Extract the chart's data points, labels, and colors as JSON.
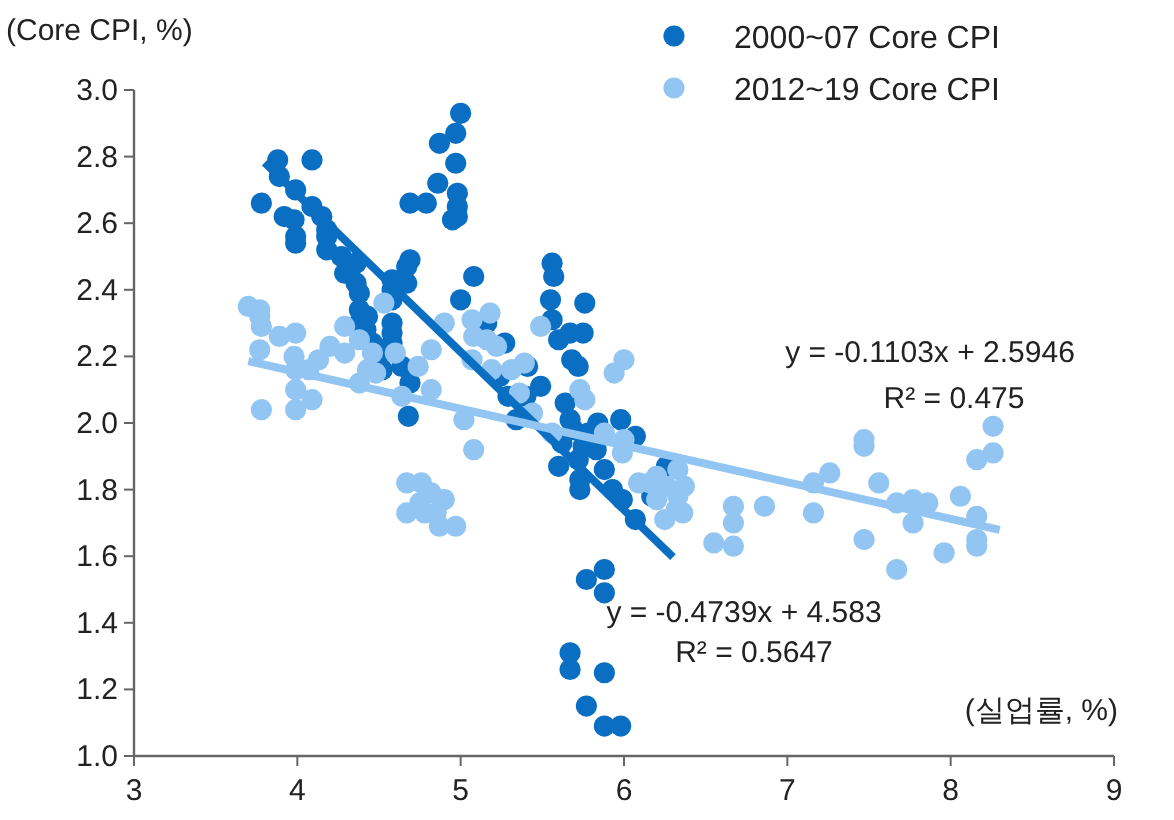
{
  "chart_data": {
    "type": "scatter",
    "xlabel": "(실업률, %)",
    "ylabel": "(Core CPI, %)",
    "legend": "top right",
    "xlim": [
      3,
      9
    ],
    "xticks": [
      3,
      4,
      5,
      6,
      7,
      8,
      9
    ],
    "ylim": [
      1,
      3
    ],
    "yticks": [
      {
        "value": 1,
        "label": "1.0"
      },
      {
        "value": 1.2,
        "label": "1.2"
      },
      {
        "value": 1.4,
        "label": "1.4"
      },
      {
        "value": 1.6,
        "label": "1.6"
      },
      {
        "value": 1.8,
        "label": "1.8"
      },
      {
        "value": 2,
        "label": "2.0"
      },
      {
        "value": 2.2,
        "label": "2.2"
      },
      {
        "value": 2.4,
        "label": "2.4"
      },
      {
        "value": 2.6,
        "label": "2.6"
      },
      {
        "value": 2.8,
        "label": "2.8"
      },
      {
        "value": 3,
        "label": "3.0"
      }
    ],
    "annotations": [
      "y = -0.1103x + 2.5946",
      "R² = 0.475",
      "y = -0.4739x + 4.583",
      "R² = 0.5647"
    ],
    "series": [
      {
        "name": "2000~07 Core CPI",
        "marker": "circle",
        "color": "#0a6fc2",
        "x": [
          3.78,
          3.88,
          3.89,
          4.09,
          4.09,
          3.92,
          3.99,
          3.98,
          3.99,
          3.99,
          4.15,
          4.18,
          4.18,
          4.18,
          4.27,
          4.29,
          4.36,
          4.36,
          4.38,
          4.38,
          4.43,
          4.38,
          4.42,
          4.46,
          4.49,
          4.52,
          4.58,
          4.58,
          4.58,
          4.58,
          4.58,
          4.58,
          4.67,
          4.69,
          4.67,
          4.64,
          4.69,
          4.68,
          4.79,
          4.69,
          4.86,
          4.87,
          4.97,
          4.98,
          4.98,
          4.97,
          4.95,
          5.0,
          4.98,
          5.08,
          5.0,
          5.16,
          5.27,
          5.24,
          5.29,
          5.34,
          5.4,
          5.41,
          5.49,
          5.56,
          5.56,
          5.57,
          5.55,
          5.6,
          5.67,
          5.68,
          5.72,
          5.75,
          5.76,
          5.64,
          5.67,
          5.69,
          5.62,
          5.6,
          5.72,
          5.75,
          5.78,
          5.73,
          5.73,
          5.88,
          5.93,
          5.83,
          5.84,
          5.98,
          6.07,
          6.17,
          5.99,
          6.07,
          6.26,
          5.77,
          5.88,
          5.88,
          5.67,
          5.67,
          5.88,
          5.77,
          5.88,
          5.98
        ],
        "values": [
          2.66,
          2.79,
          2.74,
          2.79,
          2.65,
          2.62,
          2.7,
          2.61,
          2.56,
          2.54,
          2.62,
          2.56,
          2.58,
          2.52,
          2.5,
          2.45,
          2.48,
          2.42,
          2.39,
          2.34,
          2.32,
          2.3,
          2.28,
          2.24,
          2.2,
          2.16,
          2.24,
          2.27,
          2.3,
          2.37,
          2.4,
          2.43,
          2.42,
          2.49,
          2.47,
          2.17,
          2.12,
          2.02,
          2.66,
          2.66,
          2.72,
          2.84,
          2.87,
          2.69,
          2.65,
          2.78,
          2.61,
          2.93,
          2.62,
          2.44,
          2.37,
          2.3,
          2.24,
          2.14,
          2.08,
          2.01,
          2.08,
          2.17,
          2.11,
          2.31,
          2.48,
          2.44,
          2.37,
          2.25,
          2.27,
          2.19,
          2.17,
          2.27,
          2.36,
          2.06,
          2.01,
          1.98,
          1.94,
          1.87,
          1.89,
          1.93,
          1.97,
          1.83,
          1.8,
          1.86,
          1.8,
          1.92,
          2.0,
          2.01,
          1.96,
          1.78,
          1.77,
          1.71,
          1.87,
          1.53,
          1.56,
          1.49,
          1.31,
          1.26,
          1.25,
          1.15,
          1.09,
          1.09
        ]
      },
      {
        "name": "2012~19 Core CPI",
        "marker": "circle",
        "color": "#92c5f2",
        "x": [
          3.7,
          3.77,
          3.77,
          3.78,
          3.77,
          3.89,
          3.99,
          3.78,
          3.99,
          3.99,
          4.09,
          3.99,
          3.98,
          4.07,
          4.13,
          4.2,
          4.29,
          4.29,
          4.38,
          4.38,
          4.43,
          4.46,
          4.64,
          4.53,
          4.6,
          4.48,
          4.74,
          4.82,
          4.82,
          4.9,
          5.08,
          5.07,
          5.07,
          5.18,
          5.16,
          5.22,
          5.19,
          5.31,
          5.39,
          5.36,
          5.44,
          5.02,
          4.82,
          4.67,
          4.76,
          4.75,
          4.78,
          4.85,
          4.67,
          4.97,
          4.87,
          4.9,
          5.08,
          5.49,
          5.73,
          5.76,
          5.94,
          6.0,
          5.56,
          5.88,
          6.0,
          5.99,
          6.09,
          6.2,
          6.16,
          6.2,
          6.25,
          6.33,
          6.32,
          6.26,
          6.33,
          6.37,
          6.36,
          6.55,
          6.67,
          6.67,
          6.67,
          6.86,
          7.16,
          7.16,
          7.26,
          7.47,
          7.47,
          7.56,
          7.47,
          7.67,
          7.77,
          7.77,
          7.86,
          7.96,
          7.67,
          8.06,
          8.16,
          8.16,
          8.16,
          8.16,
          8.26,
          8.26
        ],
        "values": [
          2.35,
          2.34,
          2.32,
          2.29,
          2.22,
          2.26,
          2.27,
          2.04,
          2.04,
          2.1,
          2.07,
          2.16,
          2.2,
          2.16,
          2.19,
          2.23,
          2.29,
          2.21,
          2.12,
          2.25,
          2.16,
          2.21,
          2.08,
          2.36,
          2.21,
          2.15,
          2.17,
          2.22,
          2.1,
          2.3,
          2.26,
          2.19,
          2.31,
          2.33,
          2.25,
          2.23,
          2.16,
          2.16,
          2.18,
          2.09,
          2.03,
          2.01,
          1.79,
          1.82,
          1.82,
          1.76,
          1.73,
          1.73,
          1.73,
          1.69,
          1.69,
          1.77,
          1.92,
          2.29,
          2.1,
          2.07,
          2.15,
          2.19,
          1.97,
          1.97,
          1.95,
          1.91,
          1.82,
          1.84,
          1.82,
          1.77,
          1.71,
          1.78,
          1.74,
          1.81,
          1.86,
          1.81,
          1.73,
          1.64,
          1.75,
          1.7,
          1.63,
          1.75,
          1.82,
          1.73,
          1.85,
          1.95,
          1.93,
          1.82,
          1.65,
          1.76,
          1.77,
          1.7,
          1.76,
          1.61,
          1.56,
          1.78,
          1.89,
          1.72,
          1.65,
          1.63,
          1.99,
          1.91
        ]
      },
      {
        "type": "line",
        "marker": "none",
        "color": "#0a6fc2",
        "x": [
          3.8,
          6.3
        ],
        "values": [
          2.782,
          1.597
        ]
      },
      {
        "type": "line",
        "marker": "none",
        "color": "#92c5f2",
        "x": [
          3.7,
          8.3
        ],
        "values": [
          2.186,
          1.679
        ]
      }
    ]
  }
}
